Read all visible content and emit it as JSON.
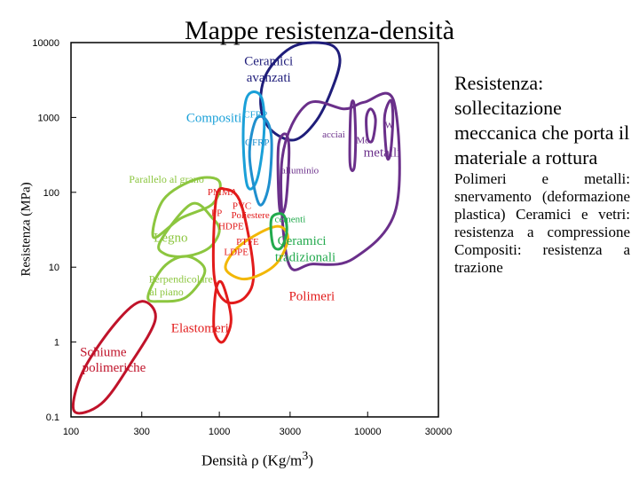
{
  "title": "Mappe resistenza-densità",
  "side_text": {
    "heading": "Resistenza: sollecitazione meccanica che porta il materiale a rottura",
    "body": "Polimeri e metalli: snervamento (deformazione plastica) Ceramici e vetri: resistenza a compressione Compositi: resistenza a trazione"
  },
  "chart_data": {
    "type": "scatter",
    "title": "Mappe resistenza-densità",
    "xlabel": "Densità ρ (Kg/m3)",
    "ylabel": "Resistenza (MPa)",
    "x_scale": "log",
    "y_scale": "log",
    "xlim": [
      100,
      30000
    ],
    "ylim": [
      0.1,
      10000
    ],
    "x_ticks": [
      "100",
      "300",
      "1000",
      "3000",
      "10000",
      "30000"
    ],
    "y_ticks": [
      "0.1",
      "1",
      "10",
      "100",
      "1000",
      "10000"
    ],
    "x_tick_values": [
      100,
      300,
      1000,
      3000,
      10000,
      30000
    ],
    "y_tick_values": [
      0.1,
      1,
      10,
      100,
      1000,
      10000
    ],
    "grid": false,
    "regions": [
      {
        "name": "Ceramici avanzati",
        "color": "#1f1d7a",
        "points": [
          [
            1900,
            1500
          ],
          [
            2100,
            4000
          ],
          [
            3200,
            9000
          ],
          [
            5500,
            9500
          ],
          [
            6500,
            6000
          ],
          [
            5800,
            2500
          ],
          [
            4500,
            900
          ],
          [
            3200,
            500
          ],
          [
            2200,
            700
          ]
        ]
      },
      {
        "name": "Compositi CFRP",
        "color": "#1aa0d8",
        "points": [
          [
            1450,
            450
          ],
          [
            1500,
            1600
          ],
          [
            1700,
            2200
          ],
          [
            1950,
            1700
          ],
          [
            2000,
            600
          ],
          [
            1800,
            150
          ],
          [
            1550,
            120
          ]
        ]
      },
      {
        "name": "Compositi GFRP",
        "color": "#1f8fce",
        "points": [
          [
            1600,
            300
          ],
          [
            1750,
            900
          ],
          [
            2050,
            950
          ],
          [
            2250,
            500
          ],
          [
            2150,
            120
          ],
          [
            1850,
            70
          ]
        ]
      },
      {
        "name": "metalli",
        "color": "#6a2f8a",
        "points": [
          [
            2900,
            12
          ],
          [
            2650,
            280
          ],
          [
            3900,
            1500
          ],
          [
            7000,
            1300
          ],
          [
            9500,
            1600
          ],
          [
            15000,
            1650
          ],
          [
            15500,
            60
          ],
          [
            8000,
            13
          ],
          [
            4200,
            11
          ]
        ]
      },
      {
        "name": "acciai",
        "color": "#6a2f8a",
        "points": [
          [
            7600,
            250
          ],
          [
            7700,
            1300
          ],
          [
            8100,
            1500
          ],
          [
            8300,
            500
          ],
          [
            8100,
            210
          ]
        ]
      },
      {
        "name": "W",
        "color": "#6a2f8a",
        "points": [
          [
            13500,
            300
          ],
          [
            13000,
            1000
          ],
          [
            14300,
            1700
          ],
          [
            14800,
            1000
          ],
          [
            14300,
            350
          ]
        ]
      },
      {
        "name": "Mo",
        "color": "#6a2f8a",
        "points": [
          [
            10000,
            520
          ],
          [
            9800,
            1000
          ],
          [
            10500,
            1300
          ],
          [
            11300,
            950
          ],
          [
            10800,
            500
          ]
        ]
      },
      {
        "name": "alluminio",
        "color": "#6a2f8a",
        "points": [
          [
            2550,
            60
          ],
          [
            2500,
            400
          ],
          [
            2800,
            600
          ],
          [
            2950,
            350
          ],
          [
            2800,
            70
          ]
        ]
      },
      {
        "name": "Legno",
        "color": "#8cc63f",
        "points": [
          [
            430,
            15
          ],
          [
            400,
            22
          ],
          [
            650,
            70
          ],
          [
            900,
            45
          ],
          [
            1000,
            30
          ],
          [
            850,
            18
          ],
          [
            600,
            14
          ]
        ]
      },
      {
        "name": "Parallelo al grano",
        "color": "#8cc63f",
        "points": [
          [
            360,
            25
          ],
          [
            420,
            80
          ],
          [
            700,
            150
          ],
          [
            1000,
            140
          ],
          [
            900,
            70
          ],
          [
            550,
            45
          ]
        ]
      },
      {
        "name": "Perpendicolare al piano",
        "color": "#8cc63f",
        "points": [
          [
            330,
            4
          ],
          [
            420,
            10
          ],
          [
            600,
            14
          ],
          [
            800,
            9
          ],
          [
            600,
            4
          ],
          [
            400,
            3.5
          ]
        ]
      },
      {
        "name": "Polimeri",
        "color": "#e21b1b",
        "points": [
          [
            920,
            8
          ],
          [
            950,
            80
          ],
          [
            1100,
            110
          ],
          [
            1400,
            70
          ],
          [
            1700,
            9
          ],
          [
            1500,
            4
          ],
          [
            1100,
            3.5
          ]
        ]
      },
      {
        "name": "Ceramici tradizionali",
        "color": "#f2b705",
        "points": [
          [
            1100,
            10
          ],
          [
            1400,
            20
          ],
          [
            2400,
            35
          ],
          [
            2900,
            25
          ],
          [
            2500,
            12
          ],
          [
            1900,
            8
          ],
          [
            1400,
            7
          ]
        ]
      },
      {
        "name": "cementi",
        "color": "#22aa4d",
        "points": [
          [
            2300,
            20
          ],
          [
            2250,
            45
          ],
          [
            2700,
            50
          ],
          [
            2850,
            30
          ],
          [
            2600,
            18
          ]
        ]
      },
      {
        "name": "Elastomeri",
        "color": "#e21b1b",
        "points": [
          [
            920,
            1.5
          ],
          [
            950,
            5
          ],
          [
            1050,
            6
          ],
          [
            1200,
            2
          ],
          [
            1050,
            1
          ]
        ]
      },
      {
        "name": "Schiume polimeriche",
        "color": "#c0132a",
        "points": [
          [
            105,
            0.12
          ],
          [
            120,
            0.4
          ],
          [
            200,
            1.8
          ],
          [
            300,
            3.5
          ],
          [
            370,
            2
          ],
          [
            250,
            0.5
          ],
          [
            160,
            0.15
          ]
        ]
      }
    ],
    "labels": [
      {
        "text": "Ceramici",
        "x": 2150,
        "y": 5000,
        "color": "#1f1d7a",
        "size": 15
      },
      {
        "text": "avanzati",
        "x": 2150,
        "y": 3000,
        "color": "#1f1d7a",
        "size": 15
      },
      {
        "text": "Compositi",
        "x": 920,
        "y": 870,
        "color": "#1aa0d8",
        "size": 15
      },
      {
        "text": "CFRP",
        "x": 1750,
        "y": 1000,
        "color": "#1aa0d8",
        "size": 11
      },
      {
        "text": "GFRP",
        "x": 1800,
        "y": 420,
        "color": "#1f8fce",
        "size": 11
      },
      {
        "text": "acciai",
        "x": 5900,
        "y": 540,
        "color": "#6a2f8a",
        "size": 11
      },
      {
        "text": "W",
        "x": 14000,
        "y": 720,
        "color": "#6a2f8a",
        "size": 11
      },
      {
        "text": "Mo",
        "x": 9300,
        "y": 450,
        "color": "#6a2f8a",
        "size": 11
      },
      {
        "text": "metalli",
        "x": 12500,
        "y": 300,
        "color": "#6a2f8a",
        "size": 15
      },
      {
        "text": "alluminio",
        "x": 3500,
        "y": 180,
        "color": "#6a2f8a",
        "size": 11
      },
      {
        "text": "Parallelo al grano",
        "x": 440,
        "y": 135,
        "color": "#8cc63f",
        "size": 12
      },
      {
        "text": "Legno",
        "x": 470,
        "y": 22,
        "color": "#8cc63f",
        "size": 15
      },
      {
        "text": "Perpendicolare",
        "x": 550,
        "y": 6.2,
        "color": "#8cc63f",
        "size": 12
      },
      {
        "text": "al piano",
        "x": 440,
        "y": 4.2,
        "color": "#8cc63f",
        "size": 12
      },
      {
        "text": "PMMA",
        "x": 1050,
        "y": 92,
        "color": "#e21b1b",
        "size": 11
      },
      {
        "text": "PVC",
        "x": 1420,
        "y": 60,
        "color": "#e21b1b",
        "size": 11
      },
      {
        "text": "PP",
        "x": 960,
        "y": 48,
        "color": "#e21b1b",
        "size": 11
      },
      {
        "text": "Poliestere",
        "x": 1620,
        "y": 45,
        "color": "#e21b1b",
        "size": 11
      },
      {
        "text": "HDPE",
        "x": 1200,
        "y": 32,
        "color": "#e21b1b",
        "size": 11
      },
      {
        "text": "PTFE",
        "x": 1550,
        "y": 20,
        "color": "#e21b1b",
        "size": 11
      },
      {
        "text": "LDPE",
        "x": 1300,
        "y": 14.5,
        "color": "#e21b1b",
        "size": 11
      },
      {
        "text": "cementi",
        "x": 3000,
        "y": 40,
        "color": "#22aa4d",
        "size": 11
      },
      {
        "text": "Ceramici",
        "x": 3600,
        "y": 20,
        "color": "#22aa4d",
        "size": 15
      },
      {
        "text": "tradizionali",
        "x": 3800,
        "y": 12,
        "color": "#22aa4d",
        "size": 15
      },
      {
        "text": "Polimeri",
        "x": 4200,
        "y": 3.6,
        "color": "#e21b1b",
        "size": 15
      },
      {
        "text": "Elastomeri",
        "x": 740,
        "y": 1.35,
        "color": "#e21b1b",
        "size": 15
      },
      {
        "text": "Schiume",
        "x": 165,
        "y": 0.65,
        "color": "#c0132a",
        "size": 15
      },
      {
        "text": "polimeriche",
        "x": 195,
        "y": 0.4,
        "color": "#c0132a",
        "size": 15
      }
    ]
  }
}
